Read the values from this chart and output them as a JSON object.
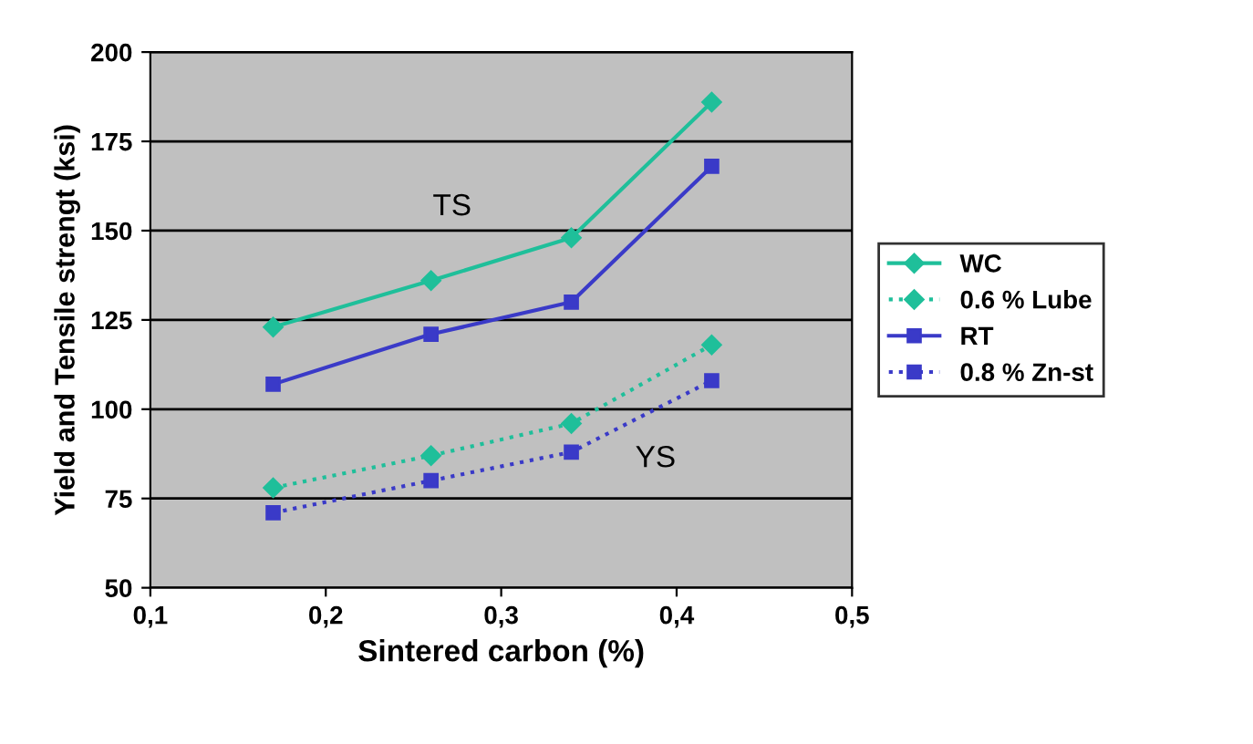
{
  "chart_data": {
    "type": "line",
    "xlabel": "Sintered carbon (%)",
    "ylabel": "Yield and Tensile strengt (ksi)",
    "x": [
      0.17,
      0.26,
      0.34,
      0.42
    ],
    "series": [
      {
        "name": "WC",
        "color": "#1fbf9a",
        "values": [
          123,
          136,
          148,
          186
        ],
        "marker": "diamond",
        "line_style": "solid"
      },
      {
        "name": "0.6 % Lube",
        "color": "#1fbf9a",
        "values": [
          78,
          87,
          96,
          118
        ],
        "marker": "diamond",
        "line_style": "dotted"
      },
      {
        "name": "RT",
        "color": "#3a3ac8",
        "values": [
          107,
          121,
          130,
          168
        ],
        "marker": "square",
        "line_style": "solid"
      },
      {
        "name": "0.8 % Zn-st",
        "color": "#3a3ac8",
        "values": [
          71,
          80,
          88,
          108
        ],
        "marker": "square",
        "line_style": "dotted"
      }
    ],
    "xlim": [
      0.1,
      0.5
    ],
    "xticks": [
      {
        "value": 0.1,
        "label": "0,1"
      },
      {
        "value": 0.2,
        "label": "0,2"
      },
      {
        "value": 0.3,
        "label": "0,3"
      },
      {
        "value": 0.4,
        "label": "0,4"
      },
      {
        "value": 0.5,
        "label": "0,5"
      }
    ],
    "ylim": [
      50,
      200
    ],
    "yticks": [
      50,
      75,
      100,
      125,
      150,
      175,
      200
    ],
    "grid": "y",
    "legend": "right",
    "annotations": [
      "TS",
      "YS"
    ]
  }
}
